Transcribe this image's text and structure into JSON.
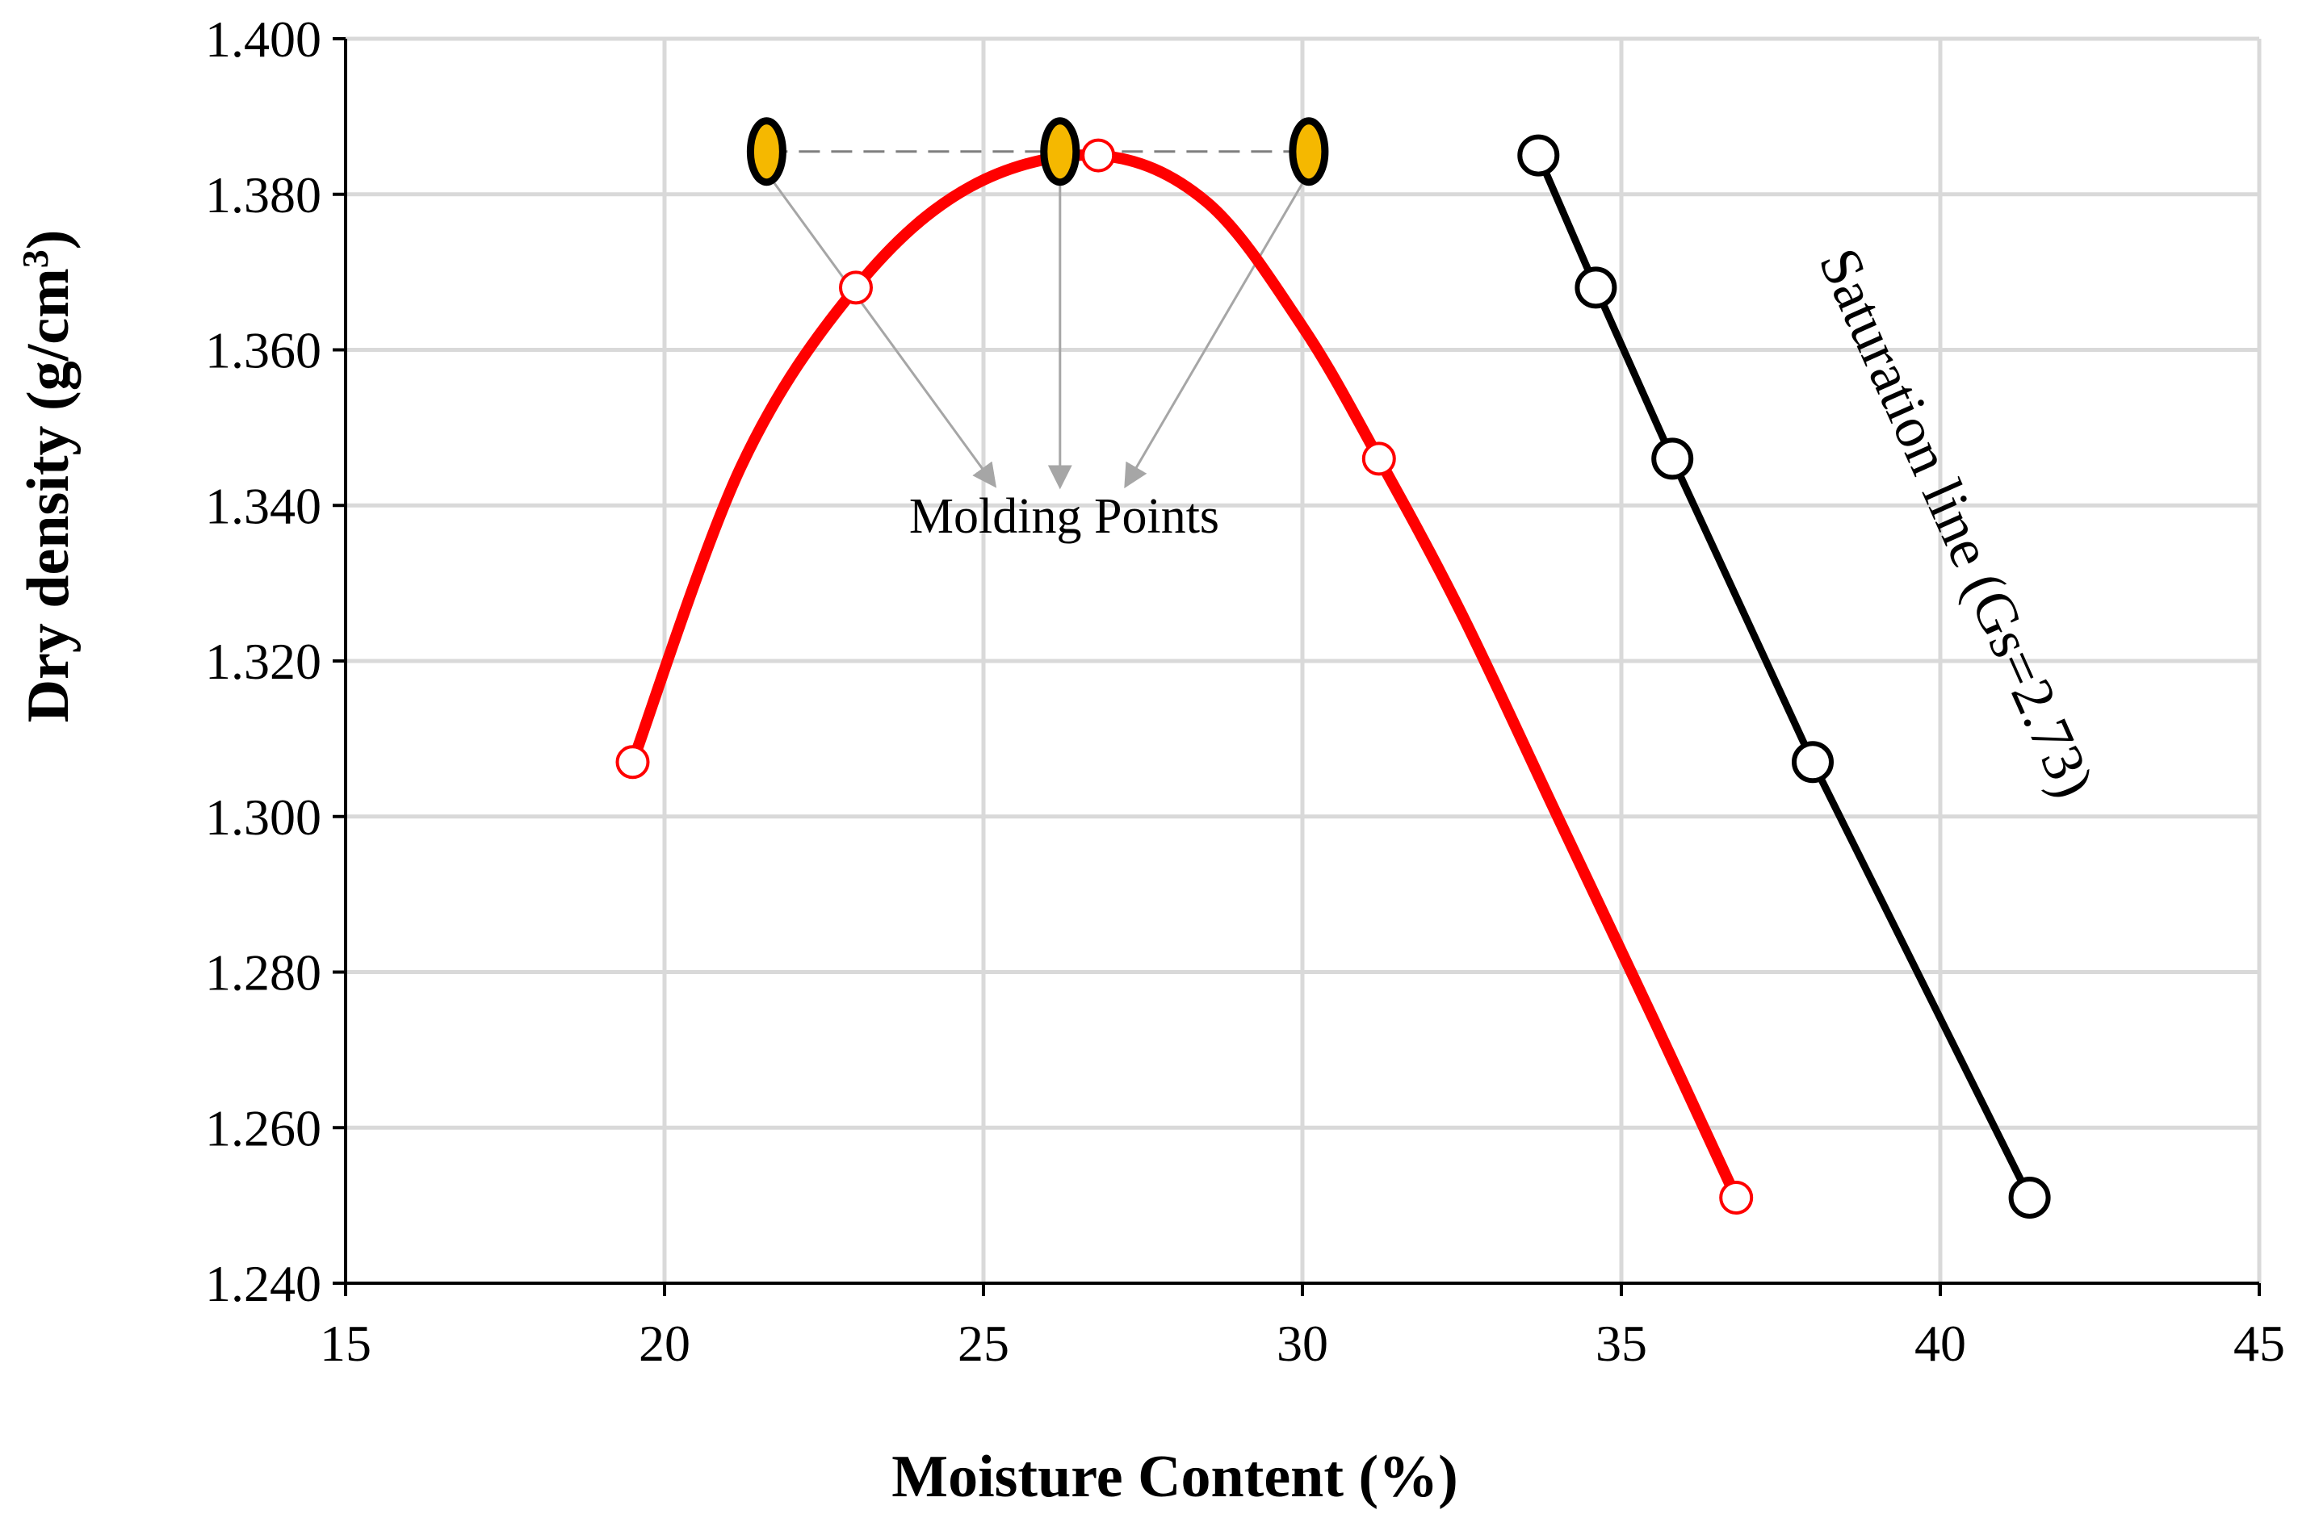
{
  "chart_data": {
    "type": "scatter",
    "xlabel": "Moisture Content (%)",
    "ylabel_main": "Dry density (g/cm",
    "ylabel_sup": "3",
    "ylabel_close": ")",
    "xlim": [
      15,
      45
    ],
    "ylim": [
      1.24,
      1.4
    ],
    "grid": true,
    "x_ticks": [
      {
        "value": 15,
        "label": "15"
      },
      {
        "value": 20,
        "label": "20"
      },
      {
        "value": 25,
        "label": "25"
      },
      {
        "value": 30,
        "label": "30"
      },
      {
        "value": 35,
        "label": "35"
      },
      {
        "value": 40,
        "label": "40"
      },
      {
        "value": 45,
        "label": "45"
      }
    ],
    "y_ticks": [
      {
        "value": 1.24,
        "label": "1.240"
      },
      {
        "value": 1.26,
        "label": "1.260"
      },
      {
        "value": 1.28,
        "label": "1.280"
      },
      {
        "value": 1.3,
        "label": "1.300"
      },
      {
        "value": 1.32,
        "label": "1.320"
      },
      {
        "value": 1.34,
        "label": "1.340"
      },
      {
        "value": 1.36,
        "label": "1.360"
      },
      {
        "value": 1.38,
        "label": "1.380"
      },
      {
        "value": 1.4,
        "label": "1.400"
      }
    ],
    "series": [
      {
        "key": "compaction",
        "color": "#ff0000",
        "marker": "open-circle",
        "points": [
          {
            "x": 19.5,
            "y": 1.307
          },
          {
            "x": 23.0,
            "y": 1.368
          },
          {
            "x": 26.8,
            "y": 1.385
          },
          {
            "x": 31.2,
            "y": 1.346
          },
          {
            "x": 36.8,
            "y": 1.251
          }
        ],
        "curve_points": [
          {
            "x": 19.5,
            "y": 1.307
          },
          {
            "x": 21.2,
            "y": 1.345
          },
          {
            "x": 23.0,
            "y": 1.368
          },
          {
            "x": 24.8,
            "y": 1.381
          },
          {
            "x": 26.8,
            "y": 1.385
          },
          {
            "x": 28.5,
            "y": 1.379
          },
          {
            "x": 30.0,
            "y": 1.363
          },
          {
            "x": 31.2,
            "y": 1.346
          },
          {
            "x": 32.5,
            "y": 1.326
          },
          {
            "x": 34.0,
            "y": 1.3
          },
          {
            "x": 35.5,
            "y": 1.274
          },
          {
            "x": 36.8,
            "y": 1.251
          }
        ]
      },
      {
        "key": "saturation",
        "name": "Saturation line (Gs=2.73)",
        "color": "#000000",
        "marker": "open-circle",
        "points": [
          {
            "x": 33.7,
            "y": 1.385
          },
          {
            "x": 34.6,
            "y": 1.368
          },
          {
            "x": 35.8,
            "y": 1.346
          },
          {
            "x": 38.0,
            "y": 1.307
          },
          {
            "x": 41.4,
            "y": 1.251
          }
        ]
      }
    ],
    "molding_points": {
      "label": "Molding Points",
      "color": "#f5b800",
      "y": 1.3855,
      "x": [
        21.6,
        26.2,
        30.1
      ],
      "arrow_target": {
        "x": 26.2,
        "y": 1.343
      }
    }
  }
}
